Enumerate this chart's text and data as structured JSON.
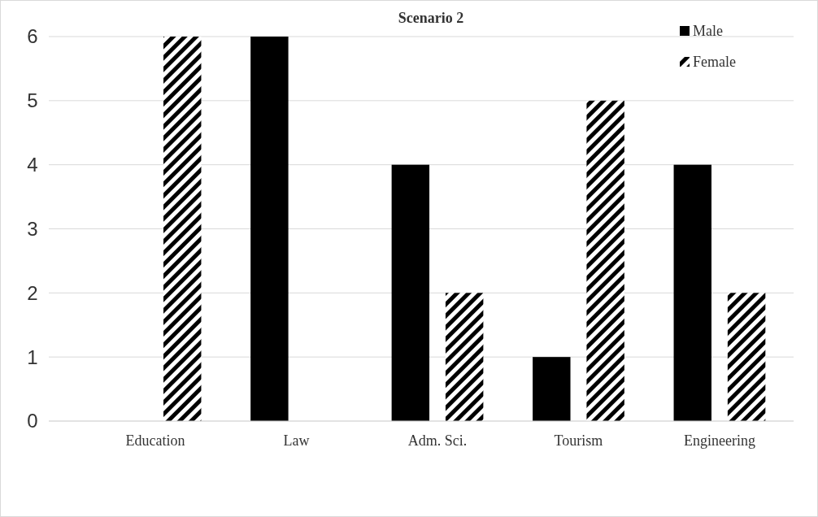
{
  "chart_data": {
    "type": "bar",
    "title": "Scenario 2",
    "categories": [
      "Education",
      "Law",
      "Adm. Sci.",
      "Tourism",
      "Engineering"
    ],
    "series": [
      {
        "name": "Male",
        "color": "#000000",
        "values": [
          0,
          6,
          4,
          1,
          4
        ]
      },
      {
        "name": "Female",
        "color": "#000000",
        "values": [
          6,
          0,
          2,
          5,
          2
        ]
      }
    ],
    "ylim": [
      0,
      6
    ],
    "yticks": [
      0,
      1,
      2,
      3,
      4,
      5,
      6
    ],
    "grid": "y",
    "legend": "top right"
  }
}
